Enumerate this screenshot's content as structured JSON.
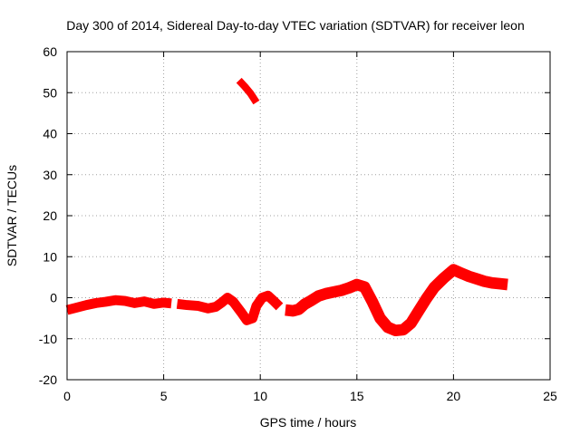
{
  "chart_data": {
    "type": "line",
    "title": "Day 300 of 2014, Sidereal Day-to-day VTEC variation (SDTVAR) for receiver leon",
    "xlabel": "GPS time / hours",
    "ylabel": "SDTVAR / TECUs",
    "xlim": [
      0,
      25
    ],
    "ylim": [
      -20,
      60
    ],
    "xticks": [
      0,
      5,
      10,
      15,
      20,
      25
    ],
    "yticks": [
      -20,
      -10,
      0,
      10,
      20,
      30,
      40,
      50,
      60
    ],
    "xtick_labels": [
      "0",
      "5",
      "10",
      "15",
      "20",
      "25"
    ],
    "ytick_labels": [
      "-20",
      "-10",
      "0",
      "10",
      "20",
      "30",
      "40",
      "50",
      "60"
    ],
    "grid": true,
    "grid_style": "dotted",
    "legend": "none",
    "series": [
      {
        "name": "band-1",
        "color": "#ff0000",
        "band_halfwidth": 1.2,
        "x": [
          0.0,
          0.5,
          1.0,
          1.5,
          2.0,
          2.5,
          3.0,
          3.5,
          4.0,
          4.5,
          5.0,
          5.4
        ],
        "y": [
          -3.0,
          -2.4,
          -1.8,
          -1.3,
          -1.0,
          -0.6,
          -0.8,
          -1.3,
          -0.9,
          -1.5,
          -1.2,
          -1.4
        ]
      },
      {
        "name": "band-2",
        "color": "#ff0000",
        "band_halfwidth": 1.2,
        "x": [
          5.7,
          6.2,
          6.8,
          7.3,
          7.7,
          8.0,
          8.3,
          8.6,
          9.0,
          9.3,
          9.6,
          9.8,
          10.1,
          10.4,
          10.7,
          11.0
        ],
        "y": [
          -1.5,
          -1.8,
          -2.0,
          -2.6,
          -2.2,
          -1.2,
          0.0,
          -1.0,
          -3.5,
          -5.5,
          -5.0,
          -2.0,
          0.0,
          0.5,
          -0.8,
          -2.2
        ]
      },
      {
        "name": "band-3",
        "color": "#ff0000",
        "band_halfwidth": 1.4,
        "x": [
          11.3,
          11.7,
          12.0,
          12.3,
          12.6,
          13.0,
          13.4,
          13.8,
          14.2,
          14.6,
          15.0,
          15.4,
          15.8,
          16.2,
          16.6,
          17.0,
          17.4,
          17.8,
          18.2,
          18.6,
          19.0,
          19.5,
          20.0,
          20.4,
          20.8,
          21.2,
          21.6,
          22.0,
          22.4,
          22.8
        ],
        "y": [
          -3.0,
          -3.2,
          -2.8,
          -1.6,
          -0.8,
          0.4,
          1.0,
          1.4,
          1.8,
          2.4,
          3.2,
          2.6,
          -1.0,
          -5.0,
          -7.2,
          -8.0,
          -7.8,
          -6.2,
          -3.2,
          -0.2,
          2.5,
          4.8,
          6.8,
          6.0,
          5.2,
          4.6,
          4.0,
          3.6,
          3.4,
          3.2
        ]
      },
      {
        "name": "outlier",
        "color": "#ff0000",
        "band_halfwidth": 0.9,
        "x": [
          8.9,
          9.2,
          9.5,
          9.8
        ],
        "y": [
          53.0,
          51.5,
          49.8,
          47.6
        ]
      }
    ]
  }
}
